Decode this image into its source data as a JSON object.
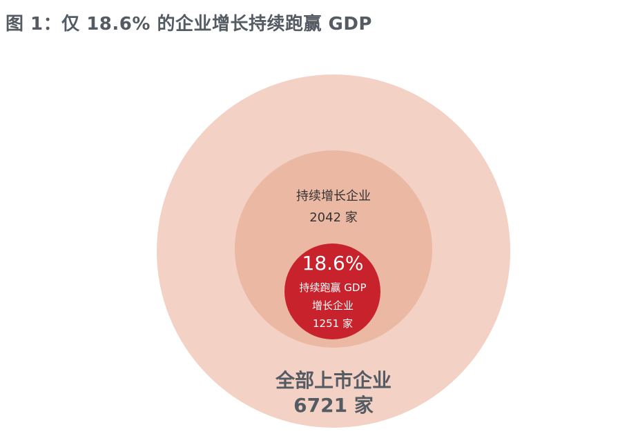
{
  "title": "图 1：仅 18.6% 的企业增长持续跑赢 GDP",
  "colors": {
    "outer": "#f3d1c4",
    "middle": "#ebb8a4",
    "inner": "#c8232c"
  },
  "chart_data": {
    "type": "nested-circles",
    "title": "图 1：仅 18.6% 的企业增长持续跑赢 GDP",
    "levels": [
      {
        "name": "全部上市企业",
        "count": 6721,
        "count_label": "6721 家"
      },
      {
        "name": "持续增长企业",
        "count": 2042,
        "count_label": "2042 家"
      },
      {
        "name_line1": "持续跑赢 GDP",
        "name_line2": "增长企业",
        "count": 1251,
        "count_label": "1251 家",
        "share": 18.6,
        "share_label": "18.6%"
      }
    ]
  }
}
